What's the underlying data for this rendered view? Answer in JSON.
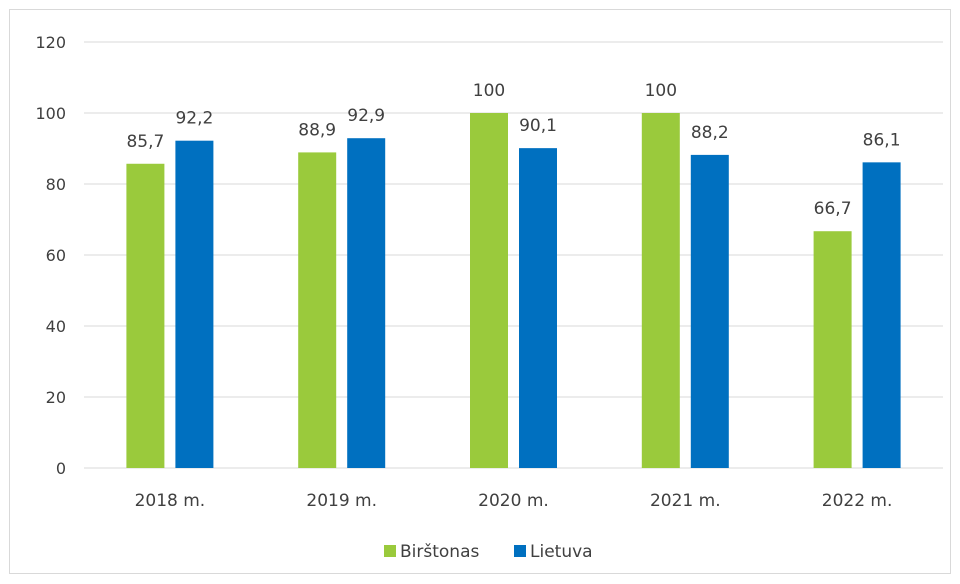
{
  "chart_data": {
    "type": "bar",
    "categories": [
      "2018 m.",
      "2019 m.",
      "2020 m.",
      "2021 m.",
      "2022 m."
    ],
    "series": [
      {
        "name": "Birštonas",
        "values": [
          85.7,
          88.9,
          100,
          100,
          66.7
        ],
        "color": "#9ACA3C",
        "labels": [
          "85,7",
          "88,9",
          "100",
          "100",
          "66,7"
        ]
      },
      {
        "name": "Lietuva",
        "values": [
          92.2,
          92.9,
          90.1,
          88.2,
          86.1
        ],
        "color": "#0070C0",
        "labels": [
          "92,2",
          "92,9",
          "90,1",
          "88,2",
          "86,1"
        ]
      }
    ],
    "y_ticks": [
      "0",
      "20",
      "40",
      "60",
      "80",
      "100",
      "120"
    ],
    "ylim": [
      0,
      120
    ],
    "grid": true,
    "legend_position": "bottom"
  }
}
